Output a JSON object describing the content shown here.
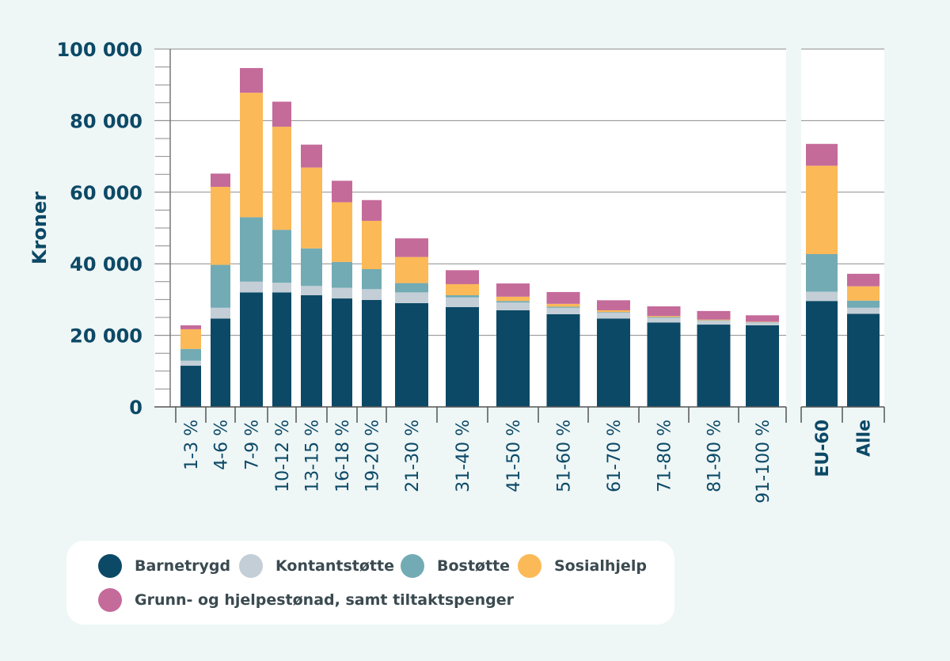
{
  "chart_data": {
    "type": "bar",
    "stacked": true,
    "ylabel": "Kroner",
    "ylim": [
      0,
      100000
    ],
    "yticks": [
      {
        "value": 0,
        "label": "0"
      },
      {
        "value": 20000,
        "label": "20 000"
      },
      {
        "value": 40000,
        "label": "40 000"
      },
      {
        "value": 60000,
        "label": "60 000"
      },
      {
        "value": 80000,
        "label": "80 000"
      },
      {
        "value": 100000,
        "label": "100 000"
      }
    ],
    "categories": [
      "1-3 %",
      "4-6 %",
      "7-9 %",
      "10-12 %",
      "13-15 %",
      "16-18 %",
      "19-20 %",
      "21-30 %",
      "31-40 %",
      "41-50 %",
      "51-60 %",
      "61-70 %",
      "71-80 %",
      "81-90 %",
      "91-100 %",
      "EU-60",
      "Alle"
    ],
    "bold_categories": [
      "EU-60",
      "Alle"
    ],
    "series": [
      {
        "name": "Barnetrygd",
        "color": "#0c4966",
        "values": [
          11500,
          24700,
          32000,
          32000,
          31200,
          30300,
          29900,
          29000,
          27900,
          27000,
          25900,
          24700,
          23600,
          23000,
          22800,
          29600,
          26000
        ]
      },
      {
        "name": "Kontantstøtte",
        "color": "#c3ced6",
        "values": [
          1400,
          3000,
          3000,
          2700,
          2600,
          3000,
          3000,
          3000,
          2700,
          2200,
          1800,
          1600,
          1300,
          1100,
          800,
          2600,
          1700
        ]
      },
      {
        "name": "Bostøtte",
        "color": "#72abb4",
        "values": [
          3300,
          12000,
          18000,
          14800,
          10500,
          7200,
          5600,
          2600,
          600,
          400,
          300,
          200,
          200,
          100,
          100,
          10500,
          2000
        ]
      },
      {
        "name": "Sosialhjelp",
        "color": "#fbb957",
        "values": [
          5500,
          21800,
          34800,
          28800,
          22600,
          16700,
          13500,
          7300,
          3100,
          1200,
          800,
          500,
          300,
          200,
          100,
          24700,
          4000
        ]
      },
      {
        "name": "Grunn- og hjelpestønad, samt tiltaktspenger",
        "color": "#c46b9a",
        "values": [
          1100,
          3700,
          6900,
          7000,
          6400,
          6000,
          5800,
          5200,
          3900,
          3700,
          3300,
          2800,
          2700,
          2400,
          1800,
          6100,
          3500
        ]
      }
    ],
    "legend_position": "bottom-left",
    "grid": true
  }
}
